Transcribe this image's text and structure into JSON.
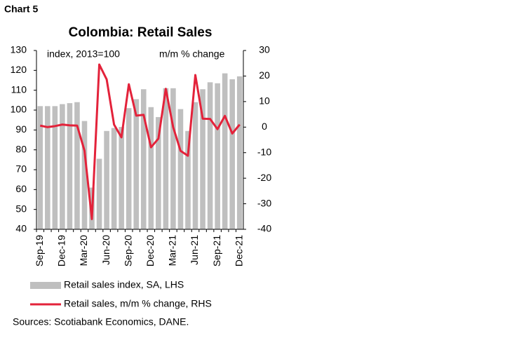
{
  "chart_data": {
    "type": "bar-line",
    "label": "Chart 5",
    "title": "Colombia: Retail Sales",
    "y_annotation": "index, 2013=100",
    "y2_annotation": "m/m % change",
    "categories": [
      "Sep-19",
      null,
      null,
      "Dec-19",
      null,
      null,
      "Mar-20",
      null,
      null,
      "Jun-20",
      null,
      null,
      "Sep-20",
      null,
      null,
      "Dec-20",
      null,
      null,
      "Mar-21",
      null,
      null,
      "Jun-21",
      null,
      null,
      "Sep-21",
      null,
      null,
      "Dec-21"
    ],
    "series": [
      {
        "name": "Retail sales index, SA, LHS",
        "type": "bar",
        "color": "#bfbfbf",
        "values": [
          102,
          102,
          102,
          103,
          103.5,
          104,
          94.5,
          61,
          75.5,
          89.5,
          91,
          91.5,
          101,
          105.5,
          110.5,
          101.5,
          96.5,
          111,
          111,
          100.5,
          89.5,
          104,
          110.5,
          114,
          113.5,
          118.5,
          115.5,
          117
        ]
      },
      {
        "name": "Retail sales, m/m % change, RHS",
        "type": "line",
        "axis": "y2",
        "color": "#e3223a",
        "values": [
          0.6,
          0,
          0.4,
          1,
          0.7,
          0.6,
          -9.2,
          -36,
          24.5,
          18.7,
          1,
          -4,
          16.8,
          4.5,
          4.8,
          -7.9,
          -4.5,
          15,
          0,
          -9.3,
          -11.2,
          20.4,
          3.3,
          3.2,
          -0.8,
          4.4,
          -2.5,
          1
        ]
      }
    ],
    "ylim": [
      40,
      130
    ],
    "yticks": [
      40,
      50,
      60,
      70,
      80,
      90,
      100,
      110,
      120,
      130
    ],
    "y2lim": [
      -40,
      30
    ],
    "y2ticks": [
      -40,
      -30,
      -20,
      -10,
      0,
      10,
      20,
      30
    ],
    "source": "Sources: Scotiabank Economics, DANE."
  }
}
